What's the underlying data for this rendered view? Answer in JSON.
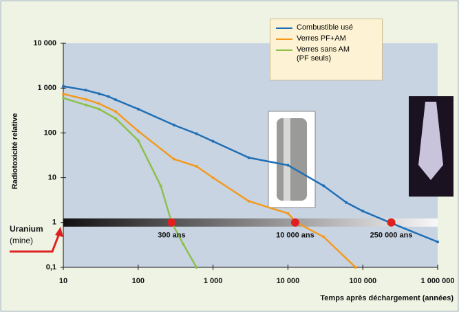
{
  "chart_data": {
    "type": "line",
    "y_label": "Radiotoxicité relative",
    "x_label": "Temps après déchargement (années)",
    "xlog": true,
    "ylog": true,
    "xlim": [
      10,
      1000000
    ],
    "ylim": [
      0.1,
      10000
    ],
    "xticks": [
      10,
      100,
      {
        "value": 1000,
        "label": "1 000"
      },
      {
        "value": 10000,
        "label": "10 000"
      },
      {
        "value": 100000,
        "label": "100 000"
      },
      {
        "value": 1000000,
        "label": "1 000 000"
      }
    ],
    "yticks": [
      {
        "value": 0.1,
        "label": "0,1"
      },
      1,
      10,
      100,
      {
        "value": 1000,
        "label": "1 000"
      },
      {
        "value": 10000,
        "label": "10 000"
      }
    ],
    "legend_position": "top-right",
    "series": [
      {
        "name": "Combustible usé",
        "color": "#1f6fb5",
        "x": [
          10,
          20,
          30,
          40,
          50,
          100,
          300,
          600,
          1000,
          3000,
          10000,
          30000,
          60000,
          100000,
          230000,
          1000000
        ],
        "values": [
          1100,
          900,
          750,
          650,
          550,
          340,
          150,
          96,
          65,
          28,
          19,
          6.6,
          2.8,
          1.8,
          1,
          0.37
        ]
      },
      {
        "name": "Verres PF+AM",
        "color": "#f39a1e",
        "x": [
          10,
          20,
          30,
          50,
          100,
          300,
          600,
          1000,
          3000,
          10000,
          13000,
          30000,
          80000
        ],
        "values": [
          740,
          560,
          450,
          300,
          110,
          26,
          18,
          10,
          3,
          1.6,
          1,
          0.48,
          0.1
        ]
      },
      {
        "name": "Verres sans AM\n(PF seuls)",
        "color": "#8cc04a",
        "x": [
          10,
          20,
          30,
          50,
          100,
          200,
          280,
          400,
          600
        ],
        "values": [
          600,
          420,
          340,
          210,
          68,
          6.6,
          1,
          0.33,
          0.1
        ]
      }
    ],
    "reference": {
      "label": "Uranium",
      "sublabel": "(mine)",
      "value": 1
    },
    "milestones": {
      "color": "#e02020",
      "x": [
        280,
        12500,
        240000
      ],
      "labels": [
        "300 ans",
        "10 000 ans",
        "250 000 ans"
      ]
    }
  }
}
